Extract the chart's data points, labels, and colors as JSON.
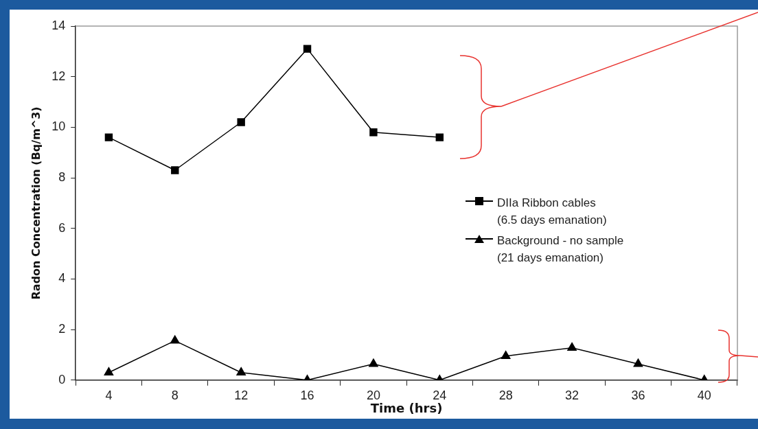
{
  "chart_data": {
    "type": "line",
    "xlabel": "Time (hrs)",
    "ylabel": "Radon Concentration (Bq/m^3)",
    "categories": [
      "4",
      "8",
      "12",
      "16",
      "20",
      "24",
      "28",
      "32",
      "36",
      "40"
    ],
    "ylim": [
      0,
      14
    ],
    "yticks": [
      0,
      2,
      4,
      6,
      8,
      10,
      12,
      14
    ],
    "grid": false,
    "legend": "right",
    "line_style": "solid",
    "series": [
      {
        "name": "DIIa Ribbon cables\n(6.5 days emanation)",
        "color": "#000000",
        "marker": "square",
        "values": [
          9.6,
          8.3,
          10.2,
          13.1,
          9.8,
          9.6,
          null,
          null,
          null,
          null
        ]
      },
      {
        "name": "Background - no sample\n(21 days emanation)",
        "color": "#000000",
        "marker": "triangle",
        "values": [
          0.3,
          1.56,
          0.3,
          0,
          0.64,
          0,
          0.95,
          1.28,
          0.64,
          0
        ]
      }
    ]
  }
}
